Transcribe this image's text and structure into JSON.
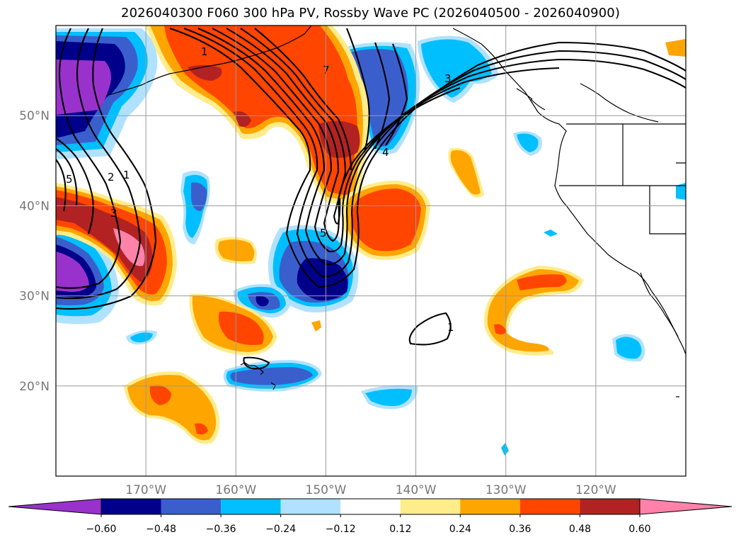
{
  "title": "2026040300 F060 300 hPa PV, Rossby Wave PC (2026040500 - 2026040900)",
  "map": {
    "lon_range": [
      -180,
      -110
    ],
    "lat_range": [
      10,
      60
    ],
    "lon_ticks": [
      {
        "lon": -170,
        "label": "170°W"
      },
      {
        "lon": -160,
        "label": "160°W"
      },
      {
        "lon": -150,
        "label": "150°W"
      },
      {
        "lon": -140,
        "label": "140°W"
      },
      {
        "lon": -130,
        "label": "130°W"
      },
      {
        "lon": -120,
        "label": "120°W"
      }
    ],
    "lat_ticks": [
      {
        "lat": 20,
        "label": "20°N"
      },
      {
        "lat": 30,
        "label": "30°N"
      },
      {
        "lat": 40,
        "label": "40°N"
      },
      {
        "lat": 50,
        "label": "50°N"
      }
    ],
    "contour_labels": [
      "1",
      "1",
      "2",
      "3",
      "3",
      "4",
      "5",
      "5",
      "7",
      "1"
    ]
  },
  "colorbar": {
    "levels": [
      "−0.60",
      "−0.48",
      "−0.36",
      "−0.24",
      "−0.12",
      "0.12",
      "0.24",
      "0.36",
      "0.48",
      "0.60"
    ],
    "colors": [
      "#9932cc",
      "#00008b",
      "#3a5fcd",
      "#00bfff",
      "#b0e2ff",
      "#ffffff",
      "#ffec8b",
      "#ffa500",
      "#ff4500",
      "#b22222",
      "#ff82ab"
    ]
  }
}
